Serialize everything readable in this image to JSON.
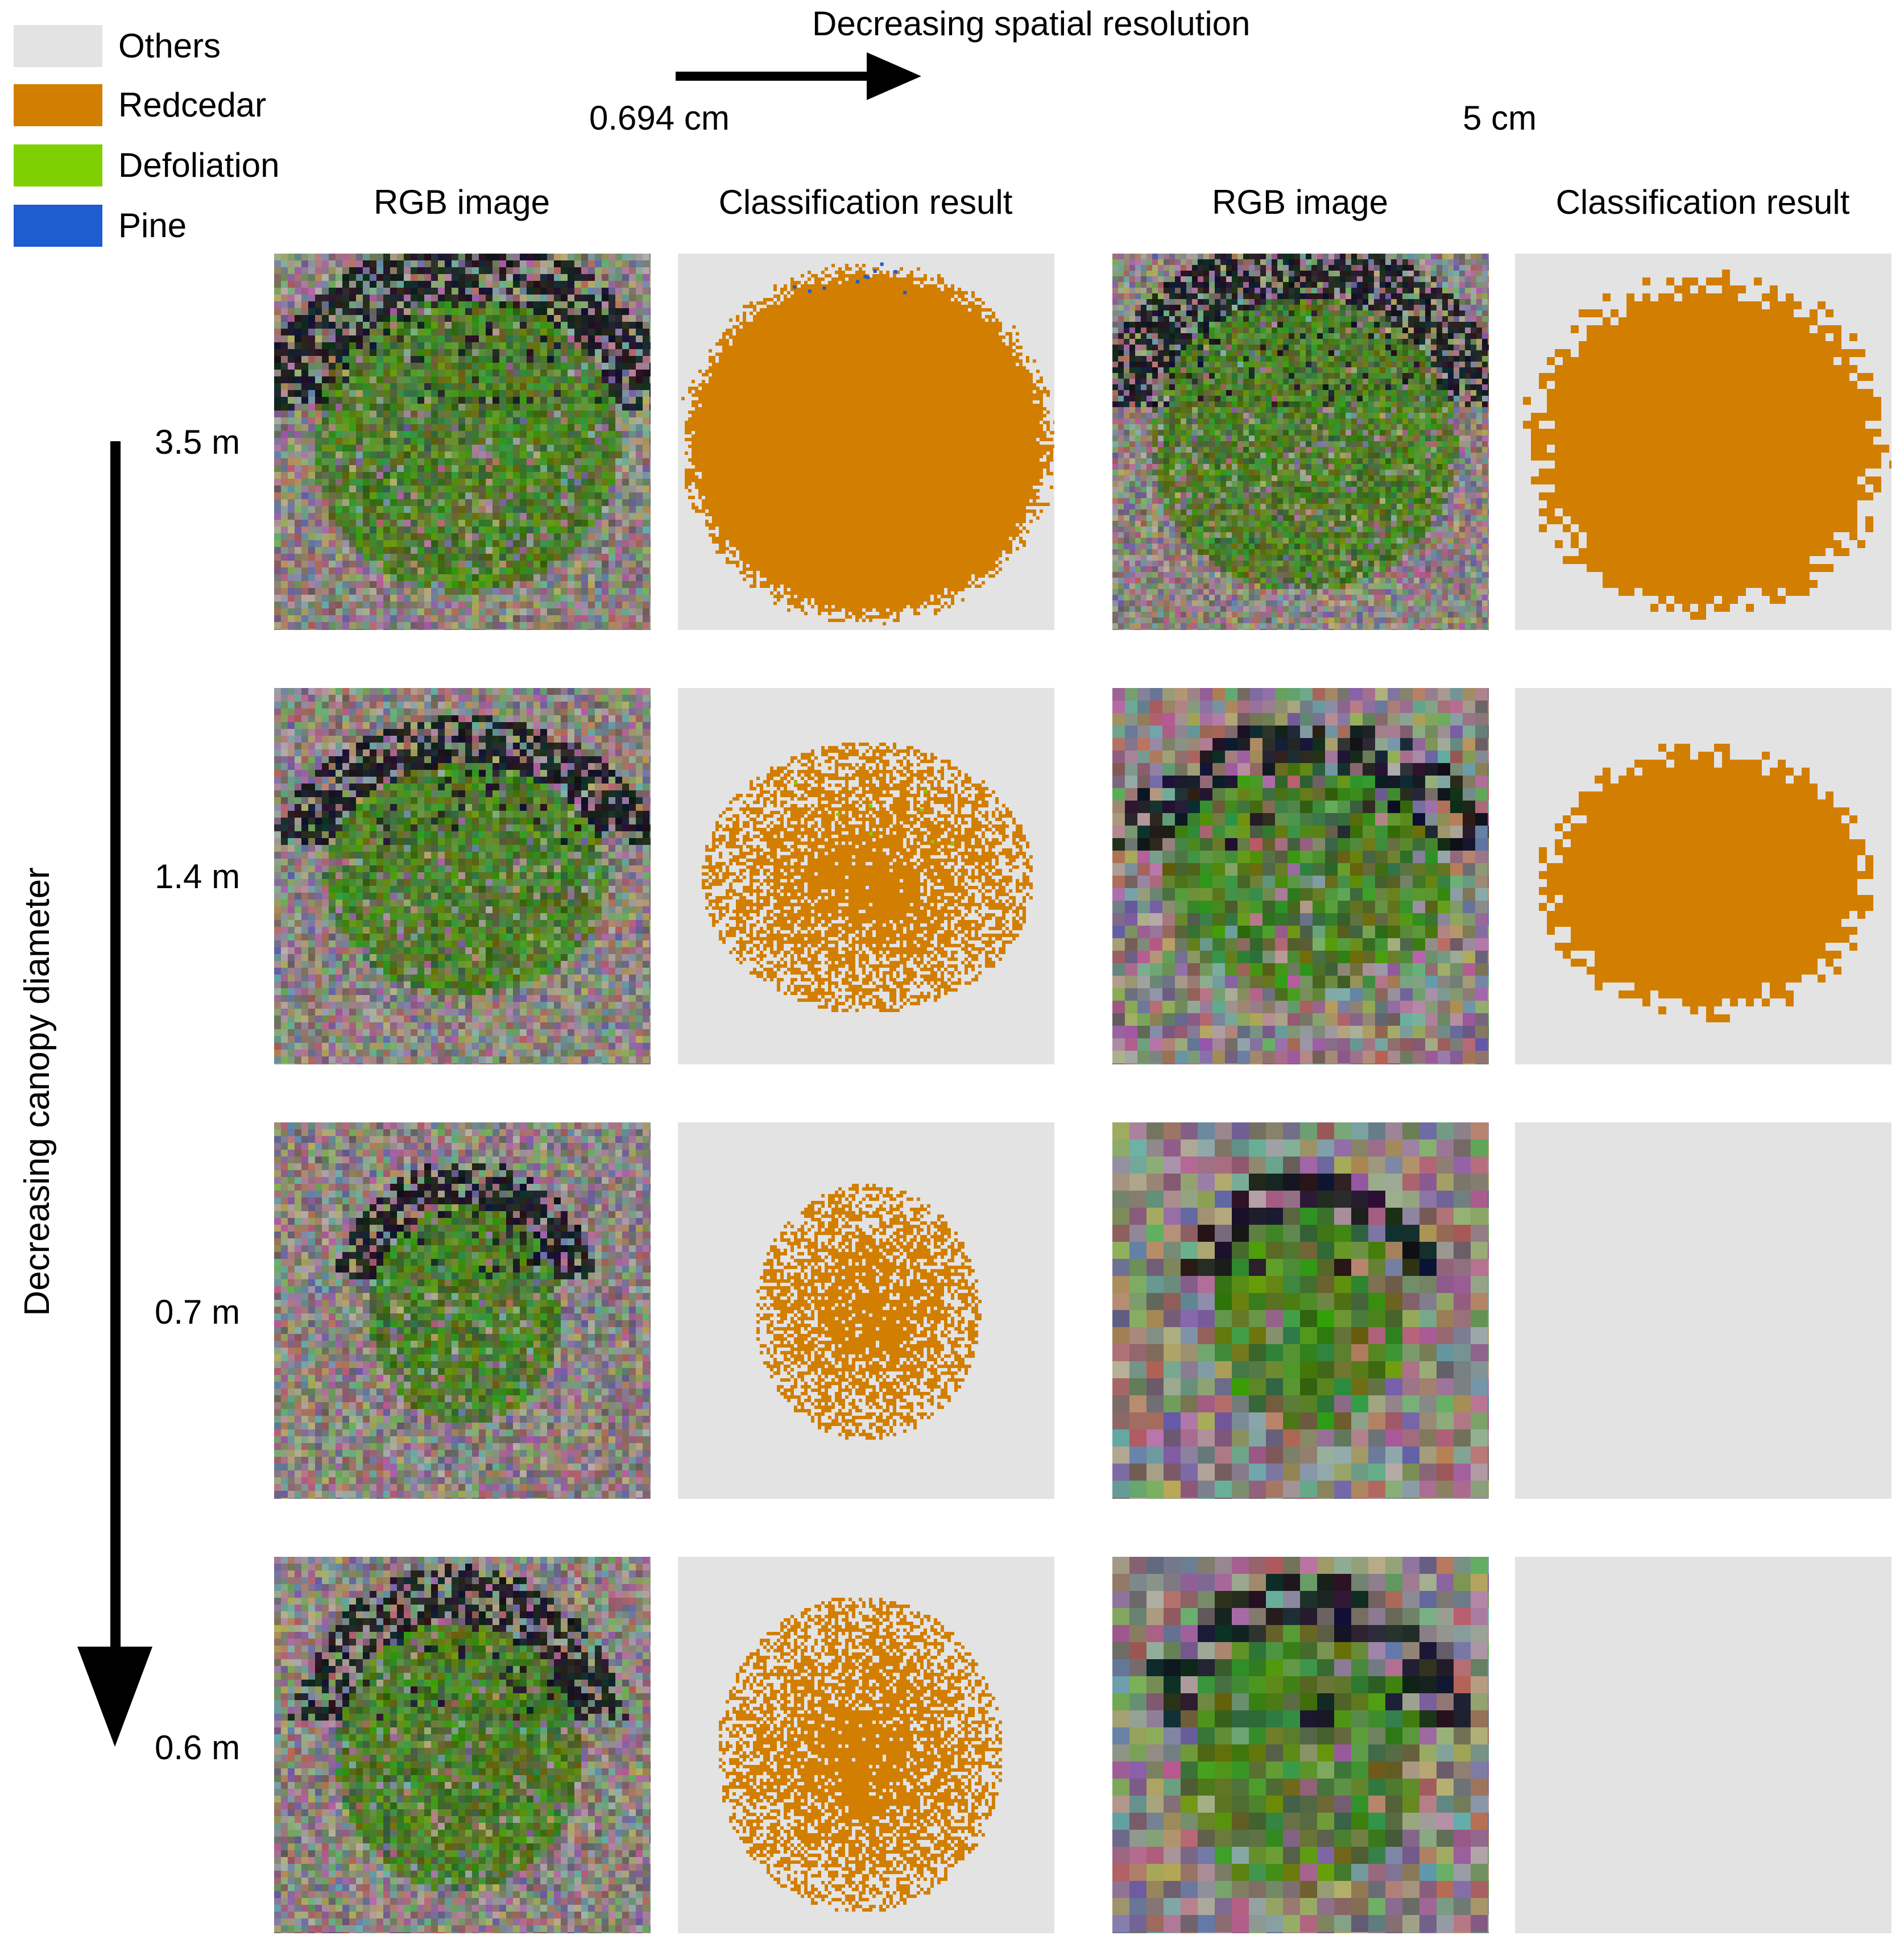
{
  "legend": {
    "items": [
      {
        "label": "Others",
        "color": "#e3e3e3"
      },
      {
        "label": "Redcedar",
        "color": "#d27e00"
      },
      {
        "label": "Defoliation",
        "color": "#7ed000"
      },
      {
        "label": "Pine",
        "color": "#1f5bd1"
      }
    ]
  },
  "resolution_axis": {
    "title": "Decreasing spatial resolution",
    "start_label": "0.694 cm",
    "end_label": "5 cm"
  },
  "diameter_axis": {
    "title": "Decreasing canopy diameter"
  },
  "columns": [
    "RGB image",
    "Classification result",
    "RGB image",
    "Classification result"
  ],
  "rows": [
    {
      "diameter": "3.5 m"
    },
    {
      "diameter": "1.4 m"
    },
    {
      "diameter": "0.7 m"
    },
    {
      "diameter": "0.6 m"
    }
  ],
  "colors": {
    "others": "#e3e3e3",
    "redcedar": "#d27e00",
    "defoliation": "#7ed000",
    "pine": "#1f5bd1",
    "soil": "#8c847f",
    "canopy": "#4f7d2a",
    "shadow": "#1e2126"
  }
}
